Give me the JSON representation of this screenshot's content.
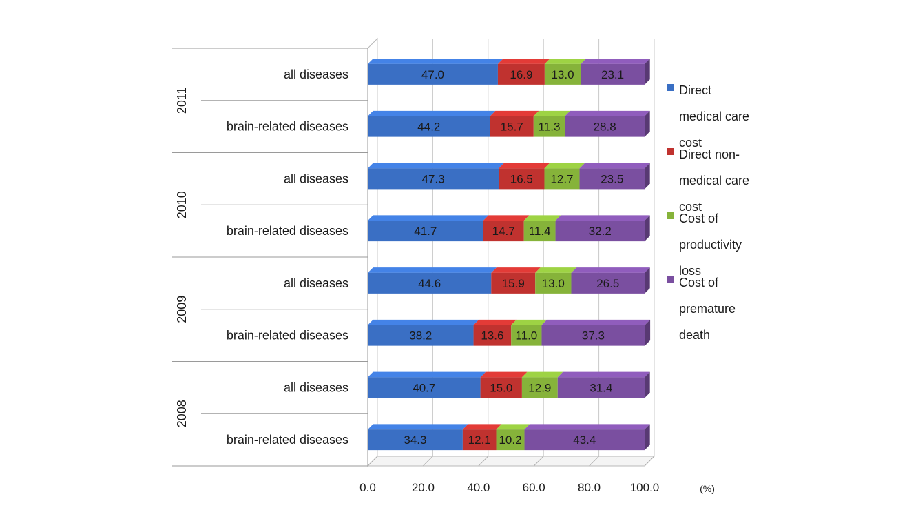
{
  "chart_data": {
    "type": "bar",
    "orientation": "horizontal",
    "stacked": true,
    "percent_stacked": true,
    "three_d": true,
    "groups": [
      {
        "year": "2011",
        "rows": [
          {
            "label": "all diseases",
            "values": [
              47.0,
              16.9,
              13.0,
              23.1
            ]
          },
          {
            "label": "brain-related diseases",
            "values": [
              44.2,
              15.7,
              11.3,
              28.8
            ]
          }
        ]
      },
      {
        "year": "2010",
        "rows": [
          {
            "label": "all diseases",
            "values": [
              47.3,
              16.5,
              12.7,
              23.5
            ]
          },
          {
            "label": "brain-related diseases",
            "values": [
              41.7,
              14.7,
              11.4,
              32.2
            ]
          }
        ]
      },
      {
        "year": "2009",
        "rows": [
          {
            "label": "all diseases",
            "values": [
              44.6,
              15.9,
              13.0,
              26.5
            ]
          },
          {
            "label": "brain-related diseases",
            "values": [
              38.2,
              13.6,
              11.0,
              37.3
            ]
          }
        ]
      },
      {
        "year": "2008",
        "rows": [
          {
            "label": "all diseases",
            "values": [
              40.7,
              15.0,
              12.9,
              31.4
            ]
          },
          {
            "label": "brain-related diseases",
            "values": [
              34.3,
              12.1,
              10.2,
              43.4
            ]
          }
        ]
      }
    ],
    "series": [
      {
        "name_lines": [
          "Direct",
          "medical care",
          "cost"
        ],
        "color": "#3a6fc4"
      },
      {
        "name_lines": [
          "Direct non-",
          "medical care",
          "cost"
        ],
        "color": "#c0322f"
      },
      {
        "name_lines": [
          "Cost of",
          "productivity",
          "loss"
        ],
        "color": "#86b33a"
      },
      {
        "name_lines": [
          "Cost of",
          "premature",
          "death"
        ],
        "color": "#7a4fa0"
      }
    ],
    "x_ticks": [
      "0.0",
      "20.0",
      "40.0",
      "60.0",
      "80.0",
      "100.0"
    ],
    "xlim": [
      0,
      100
    ],
    "x_unit_label": "(%)",
    "grid": true,
    "legend_position": "right"
  }
}
